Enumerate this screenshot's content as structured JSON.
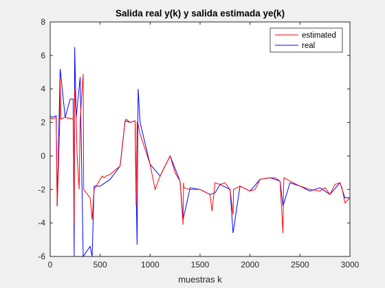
{
  "chart_data": {
    "type": "line",
    "title": "Salida real y(k) y salida estimada ye(k)",
    "xlabel": "muestras k",
    "ylabel": "",
    "xlim": [
      0,
      3000
    ],
    "ylim": [
      -6,
      8
    ],
    "xticks": [
      0,
      500,
      1000,
      1500,
      2000,
      2500,
      3000
    ],
    "xtick_labels": [
      "0",
      "500",
      "1000",
      "1500",
      "2000",
      "2500",
      "3000"
    ],
    "yticks": [
      -6,
      -4,
      -2,
      0,
      2,
      4,
      6,
      8
    ],
    "ytick_labels": [
      "-6",
      "-4",
      "-2",
      "0",
      "2",
      "4",
      "6",
      "8"
    ],
    "grid": false,
    "legend_position": "top-right",
    "series": [
      {
        "name": "estimated",
        "color": "#ff0000",
        "x": [
          0,
          20,
          60,
          70,
          95,
          100,
          105,
          150,
          230,
          240,
          245,
          260,
          270,
          290,
          300,
          330,
          335,
          400,
          420,
          440,
          460,
          480,
          500,
          520,
          540,
          560,
          600,
          700,
          750,
          760,
          800,
          850,
          860,
          870,
          880,
          900,
          1000,
          1050,
          1100,
          1200,
          1250,
          1300,
          1330,
          1335,
          1340,
          1400,
          1500,
          1600,
          1620,
          1650,
          1700,
          1750,
          1800,
          1830,
          1835,
          1900,
          2000,
          2050,
          2100,
          2200,
          2250,
          2300,
          2330,
          2335,
          2340,
          2400,
          2500,
          2600,
          2700,
          2750,
          2800,
          2850,
          2900,
          2920,
          2950,
          3000
        ],
        "y": [
          2.3,
          2.2,
          2.3,
          -3.0,
          1.8,
          4.7,
          2.2,
          2.3,
          2.2,
          -4.0,
          4.0,
          2.3,
          0.0,
          -2.0,
          2.1,
          4.9,
          -2.0,
          -2.5,
          -3.8,
          -2.0,
          -1.8,
          -1.6,
          -1.4,
          -1.2,
          -1.3,
          -1.2,
          -1.1,
          -0.6,
          2.1,
          2.2,
          2.0,
          2.1,
          -3.0,
          2.0,
          1.9,
          1.3,
          -0.5,
          -2.0,
          -1.2,
          0.0,
          -1.0,
          -1.5,
          -4.1,
          -1.6,
          -1.9,
          -2.0,
          -2.0,
          -2.3,
          -3.3,
          -1.6,
          -1.7,
          -1.6,
          -2.0,
          -3.5,
          -2.0,
          -1.8,
          -2.1,
          -2.0,
          -1.4,
          -1.3,
          -1.3,
          -1.5,
          -4.6,
          -1.9,
          -1.3,
          -1.5,
          -1.8,
          -2.0,
          -2.1,
          -1.9,
          -2.3,
          -1.7,
          -1.6,
          -1.9,
          -2.8,
          -2.5
        ]
      },
      {
        "name": "real",
        "color": "#0000ff",
        "x": [
          0,
          20,
          60,
          70,
          100,
          150,
          200,
          230,
          240,
          245,
          260,
          300,
          330,
          400,
          420,
          440,
          500,
          600,
          700,
          750,
          800,
          850,
          870,
          880,
          900,
          1000,
          1100,
          1200,
          1300,
          1330,
          1400,
          1500,
          1600,
          1650,
          1700,
          1800,
          1830,
          1900,
          2000,
          2100,
          2200,
          2300,
          2330,
          2400,
          2500,
          2600,
          2700,
          2800,
          2900,
          2950,
          3000
        ],
        "y": [
          2.4,
          2.3,
          2.4,
          -3.0,
          5.2,
          2.3,
          3.4,
          3.4,
          -6.0,
          6.5,
          2.3,
          4.7,
          -6.0,
          -5.4,
          -6.0,
          -1.8,
          -1.8,
          -1.4,
          -0.6,
          2.1,
          2.0,
          2.1,
          -5.3,
          4.0,
          2.0,
          -0.5,
          -1.2,
          0.0,
          -1.5,
          -3.8,
          -1.9,
          -2.0,
          -2.3,
          -2.2,
          -1.7,
          -2.0,
          -4.6,
          -1.8,
          -2.1,
          -1.4,
          -1.3,
          -1.5,
          -3.0,
          -1.6,
          -1.8,
          -2.1,
          -1.9,
          -2.3,
          -1.6,
          -2.5,
          -2.5
        ]
      }
    ]
  }
}
